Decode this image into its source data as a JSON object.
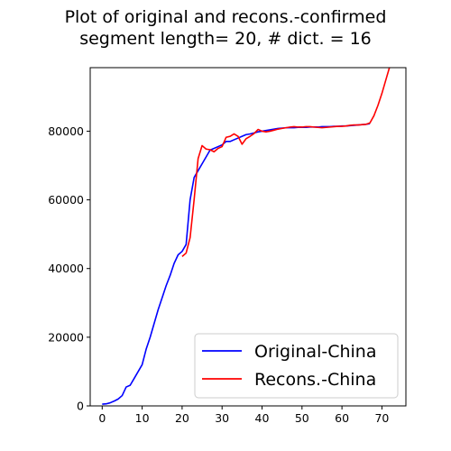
{
  "chart_data": {
    "type": "line",
    "title_line1": "Plot of original and recons.-confirmed",
    "title_line2": "segment length= 20, # dict. = 16",
    "xlim": [
      -3,
      76
    ],
    "ylim": [
      0,
      98500
    ],
    "xticks": [
      0,
      10,
      20,
      30,
      40,
      50,
      60,
      70
    ],
    "yticks": [
      0,
      20000,
      40000,
      60000,
      80000
    ],
    "legend_placement": "lower-right",
    "series": [
      {
        "name": "Original-China",
        "color": "#0000ff",
        "x": [
          0,
          1,
          2,
          3,
          4,
          5,
          6,
          7,
          8,
          9,
          10,
          11,
          12,
          13,
          14,
          15,
          16,
          17,
          18,
          19,
          20,
          21,
          22,
          23,
          24,
          25,
          26,
          27,
          28,
          29,
          30,
          31,
          32,
          33,
          34,
          35,
          36,
          37,
          38,
          39,
          40,
          41,
          42,
          43,
          44,
          45,
          46,
          47,
          48,
          49,
          50,
          51,
          52,
          53,
          54,
          55,
          56,
          57,
          58,
          59,
          60,
          61,
          62,
          63,
          64,
          65,
          66,
          67
        ],
        "y": [
          500,
          600,
          900,
          1400,
          2000,
          3000,
          5500,
          6000,
          8000,
          10000,
          12000,
          16500,
          20000,
          24000,
          28000,
          31500,
          35000,
          38000,
          41500,
          44000,
          45000,
          47000,
          60000,
          66500,
          68500,
          70500,
          72500,
          74500,
          75000,
          75500,
          76000,
          77000,
          77000,
          77500,
          78000,
          78500,
          79000,
          79200,
          79500,
          79800,
          80000,
          80200,
          80400,
          80600,
          80800,
          80900,
          81000,
          81000,
          81000,
          81100,
          81100,
          81100,
          81200,
          81200,
          81200,
          81300,
          81300,
          81300,
          81400,
          81400,
          81500,
          81500,
          81600,
          81700,
          81800,
          81900,
          82000,
          82200
        ]
      },
      {
        "name": "Recons.-China",
        "color": "#ff0000",
        "x": [
          20,
          21,
          22,
          23,
          24,
          25,
          26,
          27,
          28,
          29,
          30,
          31,
          32,
          33,
          34,
          35,
          36,
          37,
          38,
          39,
          40,
          41,
          42,
          43,
          44,
          45,
          46,
          47,
          48,
          49,
          50,
          51,
          52,
          53,
          54,
          55,
          56,
          57,
          58,
          59,
          60,
          61,
          62,
          63,
          64,
          65,
          66,
          67,
          68,
          69,
          70,
          71,
          72
        ],
        "y": [
          43500,
          44500,
          49000,
          60000,
          72000,
          75800,
          74800,
          74600,
          74000,
          75000,
          75500,
          78200,
          78500,
          79200,
          78500,
          76200,
          77800,
          78500,
          79300,
          80500,
          80000,
          79800,
          80000,
          80300,
          80600,
          80800,
          81000,
          81200,
          81300,
          81200,
          81200,
          81300,
          81300,
          81200,
          81100,
          81000,
          81100,
          81200,
          81300,
          81400,
          81400,
          81500,
          81700,
          81800,
          81800,
          81900,
          82000,
          82400,
          84500,
          87500,
          91000,
          95000,
          99000
        ]
      }
    ]
  }
}
